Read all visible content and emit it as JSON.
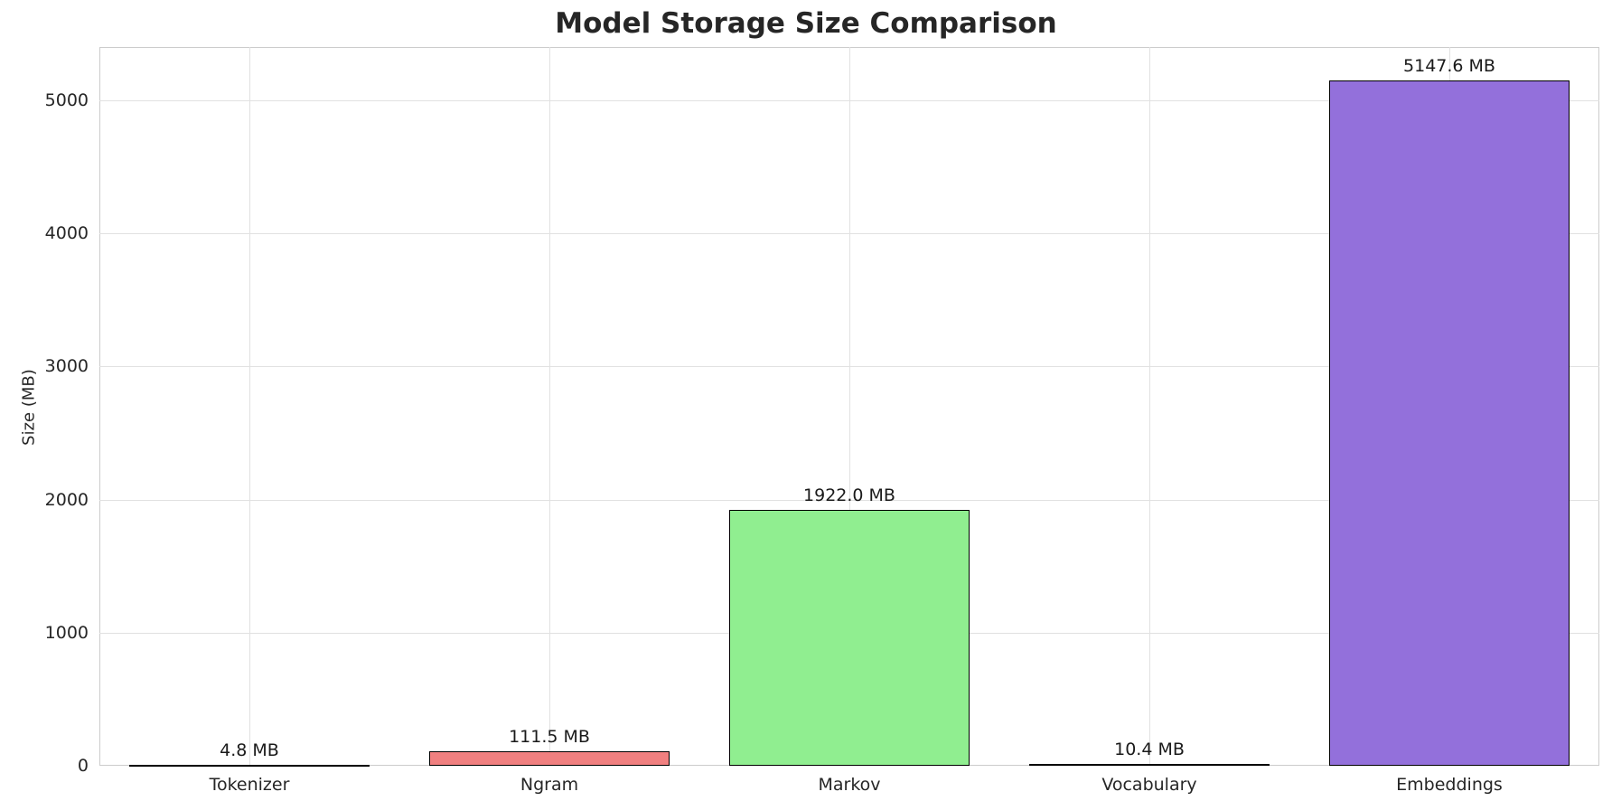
{
  "chart_data": {
    "type": "bar",
    "title": "Model Storage Size Comparison",
    "categories": [
      "Tokenizer",
      "Ngram",
      "Markov",
      "Vocabulary",
      "Embeddings"
    ],
    "values": [
      4.8,
      111.5,
      1922.0,
      10.4,
      5147.6
    ],
    "value_labels": [
      "4.8 MB",
      "111.5 MB",
      "1922.0 MB",
      "10.4 MB",
      "5147.6 MB"
    ],
    "bar_colors": [
      "#87ceeb",
      "#f08080",
      "#90ee90",
      "#ffd700",
      "#9370db"
    ],
    "bar_edge_color": "#000000",
    "xlabel": "",
    "ylabel": "Size (MB)",
    "ylim": [
      0,
      5400
    ],
    "yticks": [
      0,
      1000,
      2000,
      3000,
      4000,
      5000
    ],
    "grid": true,
    "legend": null,
    "unit": "MB"
  }
}
